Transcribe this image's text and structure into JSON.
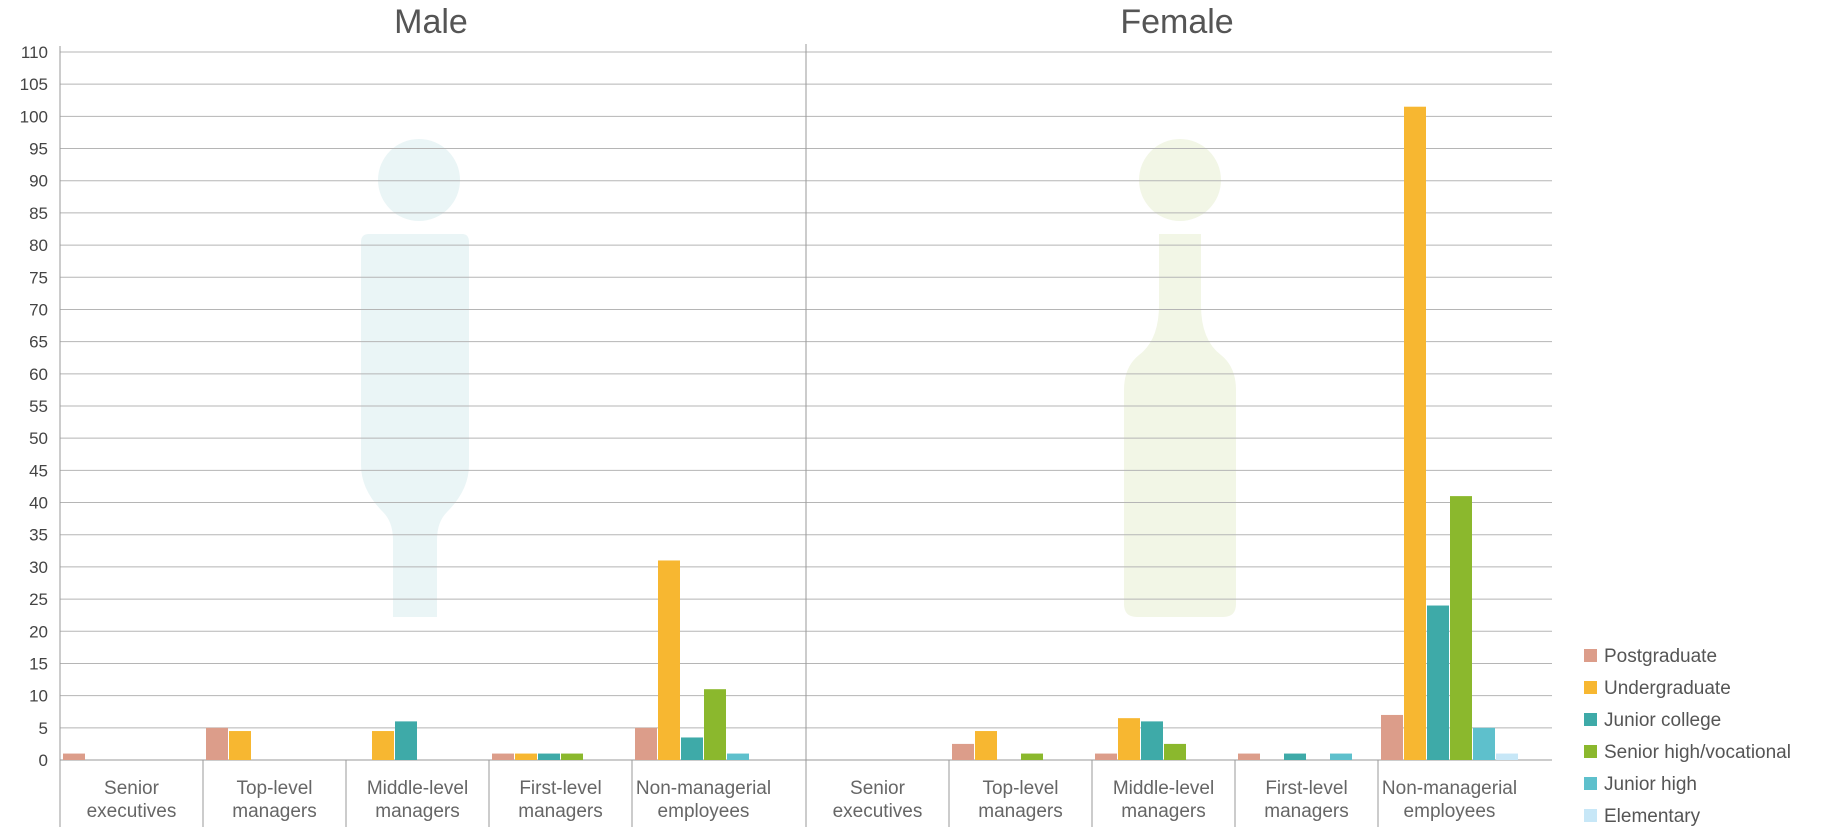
{
  "chart_data": {
    "type": "bar",
    "panels": [
      {
        "title": "Male",
        "categories": [
          {
            "line1": "Senior",
            "line2": "executives"
          },
          {
            "line1": "Top-level",
            "line2": "managers"
          },
          {
            "line1": "Middle-level",
            "line2": "managers"
          },
          {
            "line1": "First-level",
            "line2": "managers"
          },
          {
            "line1": "Non-managerial",
            "line2": "employees"
          }
        ],
        "series_values": [
          [
            1,
            5,
            0,
            1,
            5
          ],
          [
            0,
            4.5,
            4.5,
            1,
            31
          ],
          [
            0,
            0,
            6,
            1,
            3.5
          ],
          [
            0,
            0,
            0,
            1,
            11
          ],
          [
            0,
            0,
            0,
            0,
            1
          ],
          [
            0,
            0,
            0,
            0,
            0
          ]
        ]
      },
      {
        "title": "Female",
        "categories": [
          {
            "line1": "Senior",
            "line2": "executives"
          },
          {
            "line1": "Top-level",
            "line2": "managers"
          },
          {
            "line1": "Middle-level",
            "line2": "managers"
          },
          {
            "line1": "First-level",
            "line2": "managers"
          },
          {
            "line1": "Non-managerial",
            "line2": "employees"
          }
        ],
        "series_values": [
          [
            0,
            2.5,
            1,
            1,
            7
          ],
          [
            0,
            4.5,
            6.5,
            0,
            101.5
          ],
          [
            0,
            0,
            6,
            1,
            24
          ],
          [
            0,
            1,
            2.5,
            0,
            41
          ],
          [
            0,
            0,
            0,
            1,
            5
          ],
          [
            0,
            0,
            0,
            0,
            1
          ]
        ]
      }
    ],
    "series": [
      {
        "name": "Postgraduate",
        "color": "#dc9d8a"
      },
      {
        "name": "Undergraduate",
        "color": "#f7b731"
      },
      {
        "name": "Junior college",
        "color": "#3eaaa8"
      },
      {
        "name": "Senior high/vocational",
        "color": "#8bb82d"
      },
      {
        "name": "Junior high",
        "color": "#5ec0cc"
      },
      {
        "name": "Elementary",
        "color": "#c7e7f7"
      }
    ],
    "y_ticks": [
      "0",
      "5",
      "10",
      "15",
      "20",
      "25",
      "30",
      "35",
      "40",
      "45",
      "50",
      "55",
      "60",
      "65",
      "70",
      "75",
      "80",
      "85",
      "90",
      "95",
      "100",
      "105",
      "110"
    ],
    "ylim": [
      0,
      110
    ],
    "grid": true,
    "legend_position": "bottom-right",
    "background_icons": [
      "male-figure-icon",
      "female-figure-icon"
    ],
    "icon_colors": {
      "male": "#eaf5f6",
      "female": "#f2f6e6"
    }
  }
}
